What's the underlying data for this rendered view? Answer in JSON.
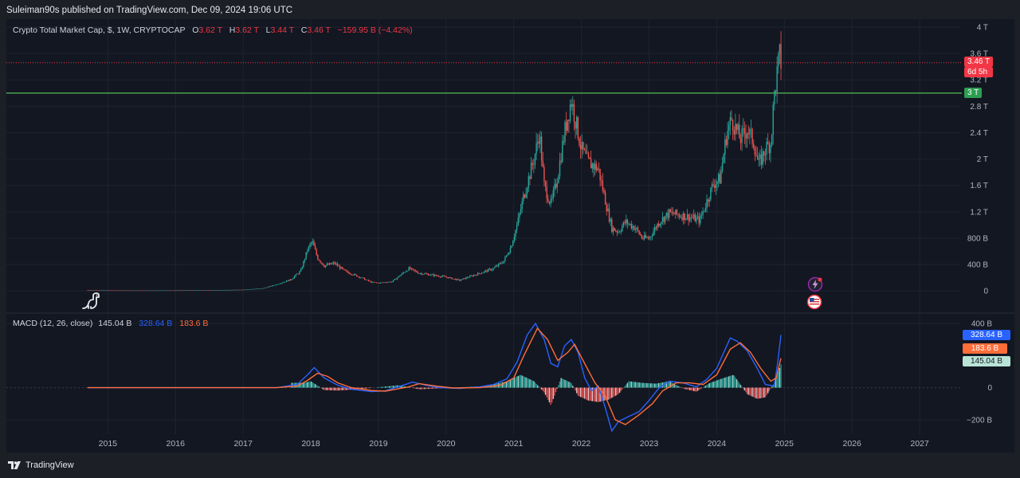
{
  "header": {
    "published_text": "Suleiman90s published on TradingView.com, Dec 09, 2024 19:06 UTC"
  },
  "legend": {
    "symbol": "Crypto Total Market Cap, $, 1W, CRYPTOCAP",
    "open_label": "O",
    "open": "3.62 T",
    "high_label": "H",
    "high": "3.62 T",
    "low_label": "L",
    "low": "3.44 T",
    "close_label": "C",
    "close": "3.46 T",
    "change": "−159.95 B (−4.42%)"
  },
  "price_axis": {
    "badge_price": "3.46 T",
    "badge_countdown": "6d 5h",
    "badge_level": "3 T"
  },
  "macd_legend": {
    "name": "MACD (12, 26, close)",
    "histogram": "145.04 B",
    "macd": "328.64 B",
    "signal": "183.6 B"
  },
  "macd_axis": {
    "badge_macd": "328.64 B",
    "badge_signal": "183.6 B",
    "badge_hist": "145.04 B"
  },
  "footer": {
    "brand": "TradingView"
  },
  "colors": {
    "up": "#26a69a",
    "down": "#ef5350",
    "macd_line": "#2962ff",
    "signal_line": "#ff6d3a",
    "level_line": "#4caf50",
    "price_line": "#f23645",
    "background": "#131722"
  },
  "icons": [
    "dino-icon",
    "lightning-icon",
    "us-flag-icon",
    "tradingview-logo-icon"
  ],
  "chart_data": [
    {
      "type": "candlestick",
      "title": "Crypto Total Market Cap, $, 1W, CRYPTOCAP",
      "x_ticks": [
        "2015",
        "2016",
        "2017",
        "2018",
        "2019",
        "2020",
        "2021",
        "2022",
        "2023",
        "2024",
        "2025",
        "2026",
        "2027"
      ],
      "y_ticks": [
        "0",
        "400 B",
        "800 B",
        "1.2 T",
        "1.6 T",
        "2 T",
        "2.4 T",
        "2.8 T",
        "3.2 T",
        "3.6 T",
        "4 T"
      ],
      "y_tick_values": [
        0,
        0.4,
        0.8,
        1.2,
        1.6,
        2.0,
        2.4,
        2.8,
        3.2,
        3.6,
        4.0
      ],
      "unit": "T",
      "ylim": [
        -0.3,
        4.0
      ],
      "xlim": [
        2013.5,
        2027.6
      ],
      "horizontal_level": 3.0,
      "last_price": 3.46,
      "series_points": [
        [
          2014.7,
          0.01
        ],
        [
          2015.0,
          0.008
        ],
        [
          2015.5,
          0.007
        ],
        [
          2016.0,
          0.008
        ],
        [
          2016.5,
          0.011
        ],
        [
          2017.0,
          0.018
        ],
        [
          2017.3,
          0.04
        ],
        [
          2017.5,
          0.1
        ],
        [
          2017.7,
          0.17
        ],
        [
          2017.85,
          0.3
        ],
        [
          2017.95,
          0.62
        ],
        [
          2018.02,
          0.75
        ],
        [
          2018.1,
          0.5
        ],
        [
          2018.2,
          0.38
        ],
        [
          2018.35,
          0.42
        ],
        [
          2018.5,
          0.3
        ],
        [
          2018.7,
          0.22
        ],
        [
          2018.9,
          0.13
        ],
        [
          2019.0,
          0.12
        ],
        [
          2019.2,
          0.14
        ],
        [
          2019.45,
          0.34
        ],
        [
          2019.6,
          0.27
        ],
        [
          2019.8,
          0.24
        ],
        [
          2020.0,
          0.21
        ],
        [
          2020.2,
          0.16
        ],
        [
          2020.3,
          0.2
        ],
        [
          2020.5,
          0.27
        ],
        [
          2020.7,
          0.34
        ],
        [
          2020.85,
          0.45
        ],
        [
          2020.95,
          0.65
        ],
        [
          2021.05,
          1.0
        ],
        [
          2021.15,
          1.45
        ],
        [
          2021.3,
          2.0
        ],
        [
          2021.38,
          2.4
        ],
        [
          2021.45,
          1.6
        ],
        [
          2021.55,
          1.3
        ],
        [
          2021.65,
          1.75
        ],
        [
          2021.75,
          2.4
        ],
        [
          2021.85,
          2.9
        ],
        [
          2021.92,
          2.55
        ],
        [
          2022.0,
          2.15
        ],
        [
          2022.1,
          1.95
        ],
        [
          2022.25,
          1.85
        ],
        [
          2022.38,
          1.25
        ],
        [
          2022.45,
          0.95
        ],
        [
          2022.55,
          0.9
        ],
        [
          2022.65,
          1.05
        ],
        [
          2022.8,
          0.95
        ],
        [
          2022.9,
          0.8
        ],
        [
          2023.0,
          0.8
        ],
        [
          2023.15,
          1.05
        ],
        [
          2023.3,
          1.18
        ],
        [
          2023.45,
          1.15
        ],
        [
          2023.6,
          1.12
        ],
        [
          2023.75,
          1.07
        ],
        [
          2023.85,
          1.35
        ],
        [
          2023.95,
          1.62
        ],
        [
          2024.05,
          1.7
        ],
        [
          2024.15,
          2.4
        ],
        [
          2024.22,
          2.6
        ],
        [
          2024.35,
          2.3
        ],
        [
          2024.45,
          2.45
        ],
        [
          2024.55,
          2.25
        ],
        [
          2024.62,
          1.9
        ],
        [
          2024.72,
          2.15
        ],
        [
          2024.8,
          2.25
        ],
        [
          2024.85,
          2.95
        ],
        [
          2024.9,
          3.35
        ],
        [
          2024.94,
          3.62
        ],
        [
          2024.95,
          3.46
        ]
      ]
    },
    {
      "type": "line",
      "title": "MACD (12, 26, close)",
      "y_ticks": [
        "400 B",
        "0",
        "−200 B"
      ],
      "y_tick_values": [
        400,
        0,
        -200
      ],
      "unit": "B",
      "ylim": [
        -290,
        440
      ],
      "series": [
        {
          "name": "MACD",
          "color": "#2962ff",
          "points": [
            [
              2014.7,
              0
            ],
            [
              2017.5,
              0
            ],
            [
              2017.8,
              20
            ],
            [
              2017.95,
              80
            ],
            [
              2018.05,
              125
            ],
            [
              2018.2,
              60
            ],
            [
              2018.4,
              15
            ],
            [
              2018.6,
              -10
            ],
            [
              2018.9,
              -25
            ],
            [
              2019.1,
              -20
            ],
            [
              2019.4,
              20
            ],
            [
              2019.5,
              35
            ],
            [
              2019.7,
              15
            ],
            [
              2019.9,
              0
            ],
            [
              2020.2,
              -5
            ],
            [
              2020.5,
              5
            ],
            [
              2020.7,
              20
            ],
            [
              2020.9,
              55
            ],
            [
              2021.05,
              160
            ],
            [
              2021.2,
              330
            ],
            [
              2021.32,
              400
            ],
            [
              2021.45,
              300
            ],
            [
              2021.55,
              150
            ],
            [
              2021.65,
              130
            ],
            [
              2021.75,
              260
            ],
            [
              2021.85,
              300
            ],
            [
              2021.95,
              220
            ],
            [
              2022.05,
              60
            ],
            [
              2022.15,
              -20
            ],
            [
              2022.25,
              10
            ],
            [
              2022.35,
              -120
            ],
            [
              2022.45,
              -270
            ],
            [
              2022.55,
              -210
            ],
            [
              2022.7,
              -180
            ],
            [
              2022.85,
              -150
            ],
            [
              2023.0,
              -80
            ],
            [
              2023.15,
              0
            ],
            [
              2023.3,
              40
            ],
            [
              2023.5,
              30
            ],
            [
              2023.7,
              5
            ],
            [
              2023.85,
              50
            ],
            [
              2024.0,
              120
            ],
            [
              2024.2,
              310
            ],
            [
              2024.3,
              290
            ],
            [
              2024.45,
              230
            ],
            [
              2024.6,
              120
            ],
            [
              2024.72,
              20
            ],
            [
              2024.85,
              10
            ],
            [
              2024.9,
              150
            ],
            [
              2024.95,
              328.64
            ]
          ]
        },
        {
          "name": "Signal",
          "color": "#ff6d3a",
          "points": [
            [
              2014.7,
              0
            ],
            [
              2017.5,
              0
            ],
            [
              2017.8,
              10
            ],
            [
              2017.95,
              45
            ],
            [
              2018.1,
              90
            ],
            [
              2018.25,
              70
            ],
            [
              2018.4,
              30
            ],
            [
              2018.6,
              0
            ],
            [
              2018.9,
              -18
            ],
            [
              2019.1,
              -22
            ],
            [
              2019.45,
              5
            ],
            [
              2019.6,
              25
            ],
            [
              2019.85,
              10
            ],
            [
              2020.1,
              -2
            ],
            [
              2020.5,
              0
            ],
            [
              2020.8,
              15
            ],
            [
              2021.0,
              60
            ],
            [
              2021.15,
              200
            ],
            [
              2021.35,
              370
            ],
            [
              2021.5,
              300
            ],
            [
              2021.65,
              170
            ],
            [
              2021.8,
              220
            ],
            [
              2021.9,
              270
            ],
            [
              2022.05,
              150
            ],
            [
              2022.2,
              30
            ],
            [
              2022.35,
              -50
            ],
            [
              2022.5,
              -200
            ],
            [
              2022.65,
              -230
            ],
            [
              2022.85,
              -170
            ],
            [
              2023.05,
              -100
            ],
            [
              2023.2,
              -20
            ],
            [
              2023.4,
              30
            ],
            [
              2023.6,
              30
            ],
            [
              2023.8,
              20
            ],
            [
              2024.0,
              80
            ],
            [
              2024.2,
              240
            ],
            [
              2024.35,
              280
            ],
            [
              2024.5,
              220
            ],
            [
              2024.65,
              120
            ],
            [
              2024.8,
              40
            ],
            [
              2024.88,
              60
            ],
            [
              2024.95,
              183.6
            ]
          ]
        }
      ],
      "histogram_points": [
        [
          2017.9,
          30
        ],
        [
          2018.0,
          40
        ],
        [
          2018.2,
          -15
        ],
        [
          2018.4,
          -18
        ],
        [
          2018.7,
          -10
        ],
        [
          2019.3,
          15
        ],
        [
          2019.6,
          -10
        ],
        [
          2020.6,
          10
        ],
        [
          2020.9,
          40
        ],
        [
          2021.1,
          80
        ],
        [
          2021.3,
          40
        ],
        [
          2021.45,
          -30
        ],
        [
          2021.55,
          -110
        ],
        [
          2021.7,
          60
        ],
        [
          2021.85,
          30
        ],
        [
          2021.95,
          -50
        ],
        [
          2022.1,
          -80
        ],
        [
          2022.25,
          -90
        ],
        [
          2022.4,
          -75
        ],
        [
          2022.55,
          -40
        ],
        [
          2022.7,
          40
        ],
        [
          2022.9,
          30
        ],
        [
          2023.1,
          25
        ],
        [
          2023.3,
          40
        ],
        [
          2023.5,
          -5
        ],
        [
          2023.7,
          -25
        ],
        [
          2023.9,
          30
        ],
        [
          2024.1,
          60
        ],
        [
          2024.25,
          80
        ],
        [
          2024.45,
          -40
        ],
        [
          2024.6,
          -70
        ],
        [
          2024.72,
          -60
        ],
        [
          2024.85,
          30
        ],
        [
          2024.95,
          145.04
        ]
      ]
    }
  ]
}
